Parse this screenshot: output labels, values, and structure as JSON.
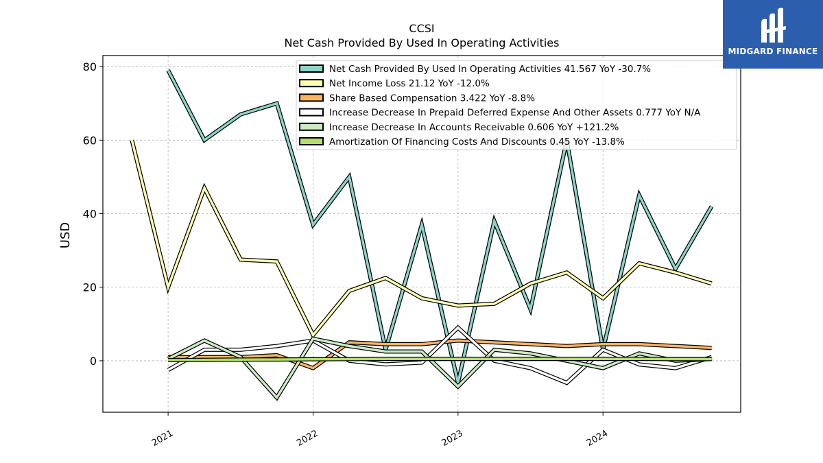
{
  "chart_data": {
    "type": "line",
    "title": "CCSI",
    "subtitle": "Net Cash Provided By Used In Operating Activities",
    "ylabel": "USD",
    "xlabel": "",
    "ylim": [
      -14,
      83
    ],
    "yticks": [
      0,
      20,
      40,
      60,
      80
    ],
    "xlim": [
      2020.55,
      2024.95
    ],
    "xticks": [
      2021,
      2022,
      2023,
      2024
    ],
    "xtick_labels": [
      "2021",
      "2022",
      "2023",
      "2024"
    ],
    "grid": true,
    "legend_position": "top-right",
    "series": [
      {
        "name": "Net Cash Provided By Used In Operating Activities",
        "legend": "Net Cash Provided By Used In Operating Activities  41.567 YoY -30.7%",
        "color": "#8dd3c7",
        "x": [
          2021.0,
          2021.25,
          2021.5,
          2021.75,
          2022.0,
          2022.25,
          2022.5,
          2022.75,
          2023.0,
          2023.25,
          2023.5,
          2023.75,
          2024.0,
          2024.25,
          2024.5,
          2024.75
        ],
        "values": [
          79,
          60,
          67,
          70,
          37,
          50,
          3,
          37,
          -6,
          38,
          14,
          60,
          3,
          45,
          25,
          42
        ]
      },
      {
        "name": "Net Income Loss",
        "legend": "Net Income Loss  21.12 YoY -12.0%",
        "color": "#ffffb3",
        "x": [
          2020.75,
          2021.0,
          2021.25,
          2021.5,
          2021.75,
          2022.0,
          2022.25,
          2022.5,
          2022.75,
          2023.0,
          2023.25,
          2023.5,
          2023.75,
          2024.0,
          2024.25,
          2024.5,
          2024.75
        ],
        "values": [
          60,
          20,
          47,
          27.5,
          27,
          7,
          19,
          22.5,
          17,
          15,
          15.5,
          21,
          24,
          17,
          26.5,
          24,
          21
        ]
      },
      {
        "name": "Share Based Compensation",
        "legend": "Share Based Compensation  3.422 YoY -8.8%",
        "color": "#fdb462",
        "x": [
          2021.0,
          2021.25,
          2021.5,
          2021.75,
          2022.0,
          2022.25,
          2022.5,
          2022.75,
          2023.0,
          2023.25,
          2023.5,
          2023.75,
          2024.0,
          2024.25,
          2024.5,
          2024.75
        ],
        "values": [
          1,
          1,
          1,
          1.5,
          -2,
          5,
          4.5,
          4.5,
          5.5,
          5,
          4.5,
          4,
          4.5,
          4.5,
          4,
          3.5
        ]
      },
      {
        "name": "Increase Decrease In Prepaid Deferred Expense And Other Assets",
        "legend": "Increase Decrease In Prepaid Deferred Expense And Other Assets  0.777 YoY N/A",
        "color": "#ffffff",
        "x": [
          2021.0,
          2021.25,
          2021.5,
          2021.75,
          2022.0,
          2022.25,
          2022.5,
          2022.75,
          2023.0,
          2023.25,
          2023.5,
          2023.75,
          2024.0,
          2024.25,
          2024.5,
          2024.75
        ],
        "values": [
          -2.5,
          3,
          3,
          4,
          5.5,
          0,
          -1,
          -0.5,
          9,
          0,
          -2,
          -6,
          3,
          -1,
          -2,
          1
        ]
      },
      {
        "name": "Increase Decrease In Accounts Receivable",
        "legend": "Increase Decrease In Accounts Receivable  0.606 YoY +121.2%",
        "color": "#ccebc5",
        "x": [
          2021.0,
          2021.25,
          2021.5,
          2021.75,
          2022.0,
          2022.25,
          2022.5,
          2022.75,
          2023.0,
          2023.25,
          2023.5,
          2023.75,
          2024.0,
          2024.25,
          2024.5,
          2024.75
        ],
        "values": [
          0.5,
          5.5,
          1,
          -10,
          6,
          4,
          2.5,
          2.5,
          -7,
          3,
          2,
          0,
          -2,
          2,
          0,
          0.5
        ]
      },
      {
        "name": "Amortization Of Financing Costs And Discounts",
        "legend": "Amortization Of Financing Costs And Discounts  0.45 YoY -13.8%",
        "color": "#b3de69",
        "x": [
          2021.0,
          2021.25,
          2021.5,
          2021.75,
          2022.0,
          2022.25,
          2022.5,
          2022.75,
          2023.0,
          2023.25,
          2023.5,
          2023.75,
          2024.0,
          2024.25,
          2024.5,
          2024.75
        ],
        "values": [
          0.2,
          0.25,
          0.3,
          0.35,
          0.4,
          0.45,
          0.5,
          0.5,
          0.52,
          0.5,
          0.5,
          0.5,
          0.5,
          0.5,
          0.45,
          0.45
        ]
      }
    ]
  },
  "logo": {
    "text": "MIDGARD FINANCE",
    "color": "#2b5fae"
  }
}
